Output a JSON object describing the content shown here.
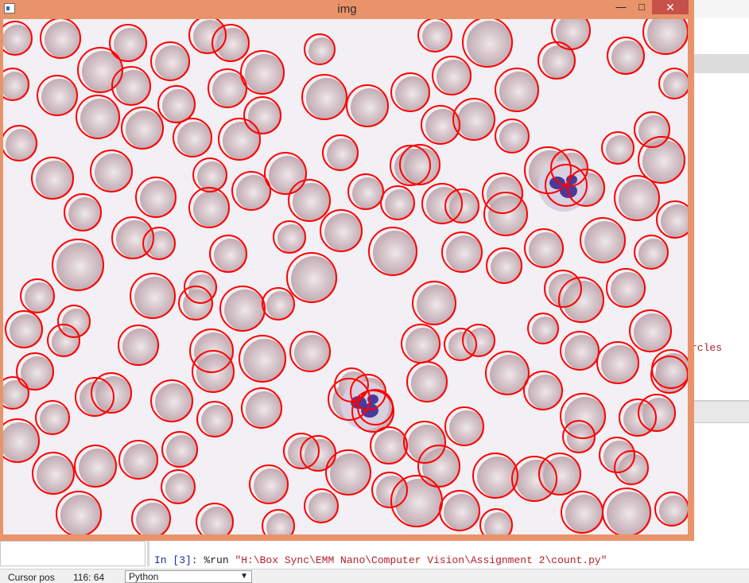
{
  "image_window": {
    "title": "img",
    "controls": {
      "minimize": "—",
      "maximize": "□",
      "close": "✕"
    },
    "icon": "app-icon"
  },
  "background_ide": {
    "console_tail": "rcles",
    "console_line": {
      "prompt": "In [3]:",
      "command": " %run ",
      "argument": "\"H:\\Box Sync\\EMM Nano\\Computer Vision\\Assignment 2\\count.py\""
    }
  },
  "status_bar": {
    "cursor_label": "Cursor pos",
    "cursor_value": "116: 64",
    "language": "Python"
  },
  "colors": {
    "window_frame": "#e9936a",
    "close_button": "#c7504a",
    "circle_stroke": "#ff0000",
    "cell_fill": "#c7b2b8",
    "nucleus": "#4a3a9a",
    "background": "#f2f0f4"
  }
}
